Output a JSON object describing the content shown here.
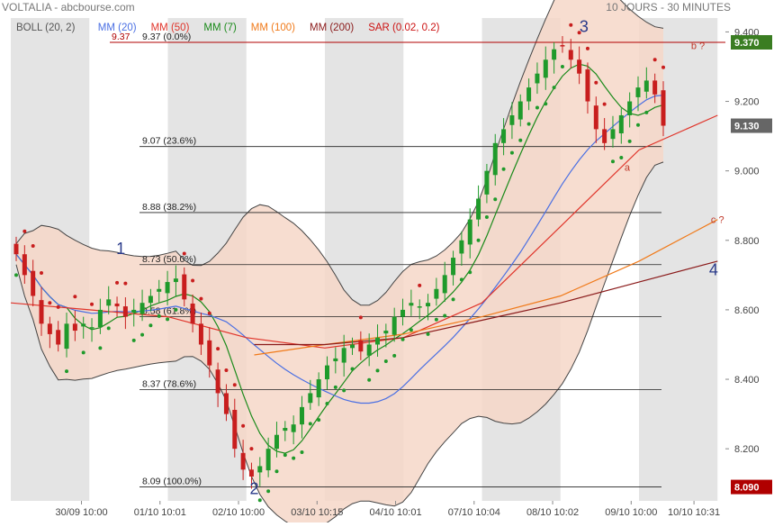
{
  "header": {
    "title": "VOLTALIA - abcbourse.com",
    "period": "10 JOURS - 30 MINUTES"
  },
  "legend": [
    {
      "label": "BOLL (20, 2)",
      "color": "#555555"
    },
    {
      "label": "MM (20)",
      "color": "#4a6fe3"
    },
    {
      "label": "MM (50)",
      "color": "#e0352b"
    },
    {
      "label": "MM (7)",
      "color": "#1a8a1a"
    },
    {
      "label": "MM (100)",
      "color": "#f07a1a"
    },
    {
      "label": "MM (200)",
      "color": "#8a1a1a"
    },
    {
      "label": "SAR (0.02, 0.2)",
      "color": "#cc1111"
    }
  ],
  "colors": {
    "up": "#1f9a2b",
    "down": "#c81e1e",
    "boll_fill": "#f6d7c8",
    "boll_edge": "#444444",
    "day_band": "#e4e4e4",
    "fib_line": "#222222",
    "price_badge": "#3a7d22",
    "close_badge": "#666666",
    "low_badge": "#b00000",
    "wave_label": "#2a3a8a",
    "annot": "#c0392b"
  },
  "chart_data": {
    "type": "candlestick",
    "title": "VOLTALIA - abcbourse.com",
    "timeframe": "10 JOURS - 30 MINUTES",
    "ylim": [
      8.05,
      9.44
    ],
    "y_ticks": [
      8.2,
      8.4,
      8.6,
      8.8,
      9.0,
      9.2,
      9.4
    ],
    "y_tick_labels": [
      "8.200",
      "8.400",
      "8.600",
      "8.800",
      "9.000",
      "9.200",
      "9.400"
    ],
    "x_labels": [
      "30/09 10:00",
      "01/10 10:01",
      "02/10 10:00",
      "03/10 10:15",
      "04/10 10:01",
      "07/10 10:04",
      "08/10 10:02",
      "09/10 10:00",
      "10/10 10:31"
    ],
    "x_label_pos": [
      0.9,
      1.9,
      2.9,
      3.9,
      4.9,
      5.9,
      6.9,
      7.9,
      8.7
    ],
    "sessions": [
      [
        0,
        1
      ],
      [
        1,
        2
      ],
      [
        2,
        3
      ],
      [
        3,
        4
      ],
      [
        4,
        5
      ],
      [
        5,
        6
      ],
      [
        6,
        7
      ],
      [
        7,
        8
      ],
      [
        8,
        9
      ]
    ],
    "shaded_sessions": [
      0,
      2,
      4,
      6,
      8
    ],
    "num_days": 9.1,
    "closes": [
      8.76,
      8.7,
      8.64,
      8.56,
      8.53,
      8.5,
      8.56,
      8.54,
      8.56,
      8.55,
      8.6,
      8.63,
      8.61,
      8.58,
      8.6,
      8.62,
      8.64,
      8.66,
      8.68,
      8.69,
      8.63,
      8.56,
      8.5,
      8.44,
      8.36,
      8.3,
      8.2,
      8.14,
      8.12,
      8.15,
      8.2,
      8.24,
      8.26,
      8.27,
      8.32,
      8.36,
      8.4,
      8.44,
      8.46,
      8.49,
      8.5,
      8.48,
      8.5,
      8.52,
      8.54,
      8.58,
      8.6,
      8.62,
      8.61,
      8.62,
      8.66,
      8.7,
      8.75,
      8.8,
      8.86,
      8.92,
      9.0,
      9.08,
      9.12,
      9.16,
      9.2,
      9.24,
      9.28,
      9.32,
      9.35,
      9.36,
      9.32,
      9.28,
      9.2,
      9.12,
      9.08,
      9.12,
      9.16,
      9.2,
      9.24,
      9.26,
      9.22,
      9.13
    ],
    "series": [
      {
        "name": "MM (7)",
        "color": "#1a8a1a",
        "period": 7
      },
      {
        "name": "MM (20)",
        "color": "#4a6fe3",
        "period": 20
      },
      {
        "name": "MM (50)",
        "color": "#e0352b"
      },
      {
        "name": "MM (100)",
        "color": "#f07a1a"
      },
      {
        "name": "MM (200)",
        "color": "#8a1a1a"
      }
    ],
    "ma_slow": {
      "MM (50)": [
        [
          0.0,
          8.62
        ],
        [
          1.0,
          8.6
        ],
        [
          2.0,
          8.58
        ],
        [
          3.0,
          8.52
        ],
        [
          4.0,
          8.49
        ],
        [
          5.0,
          8.52
        ],
        [
          6.0,
          8.62
        ],
        [
          7.0,
          8.84
        ],
        [
          8.0,
          9.06
        ],
        [
          9.0,
          9.16
        ]
      ],
      "MM (100)": [
        [
          3.1,
          8.47
        ],
        [
          4.0,
          8.5
        ],
        [
          5.0,
          8.53
        ],
        [
          6.0,
          8.58
        ],
        [
          7.0,
          8.64
        ],
        [
          8.0,
          8.74
        ],
        [
          9.0,
          8.86
        ]
      ],
      "MM (200)": [
        [
          3.1,
          8.5
        ],
        [
          4.0,
          8.5
        ],
        [
          5.0,
          8.52
        ],
        [
          6.0,
          8.57
        ],
        [
          7.0,
          8.62
        ],
        [
          8.0,
          8.68
        ],
        [
          9.0,
          8.74
        ]
      ]
    },
    "fibonacci": [
      {
        "label": "9.37 (0.0%)",
        "value": 9.37
      },
      {
        "label": "9.07 (23.6%)",
        "value": 9.07
      },
      {
        "label": "8.88 (38.2%)",
        "value": 8.88
      },
      {
        "label": "8.73 (50.0%)",
        "value": 8.73
      },
      {
        "label": "8.58 (61.8%)",
        "value": 8.58
      },
      {
        "label": "8.37 (78.6%)",
        "value": 8.37
      },
      {
        "label": "8.09 (100.0%)",
        "value": 8.09
      }
    ],
    "resistance_line": {
      "label": "9.37",
      "value": 9.37
    },
    "wave_labels": [
      {
        "text": "1",
        "x": 1.4,
        "y": 8.76
      },
      {
        "text": "2",
        "x": 3.1,
        "y": 8.07
      },
      {
        "text": "3",
        "x": 7.3,
        "y": 9.4
      },
      {
        "text": "4",
        "x": 8.95,
        "y": 8.7
      }
    ],
    "annotations": [
      {
        "text": "b ?",
        "x": 8.75,
        "y": 9.35
      },
      {
        "text": "c ?",
        "x": 9.0,
        "y": 8.85
      },
      {
        "text": "a",
        "x": 7.85,
        "y": 9.0
      }
    ],
    "price_badges": [
      {
        "text": "9.370",
        "value": 9.37,
        "kind": "price_badge"
      },
      {
        "text": "9.130",
        "value": 9.13,
        "kind": "close_badge"
      },
      {
        "text": "8.090",
        "value": 8.09,
        "kind": "low_badge"
      }
    ],
    "grid": false,
    "legend_position": "top-left"
  }
}
